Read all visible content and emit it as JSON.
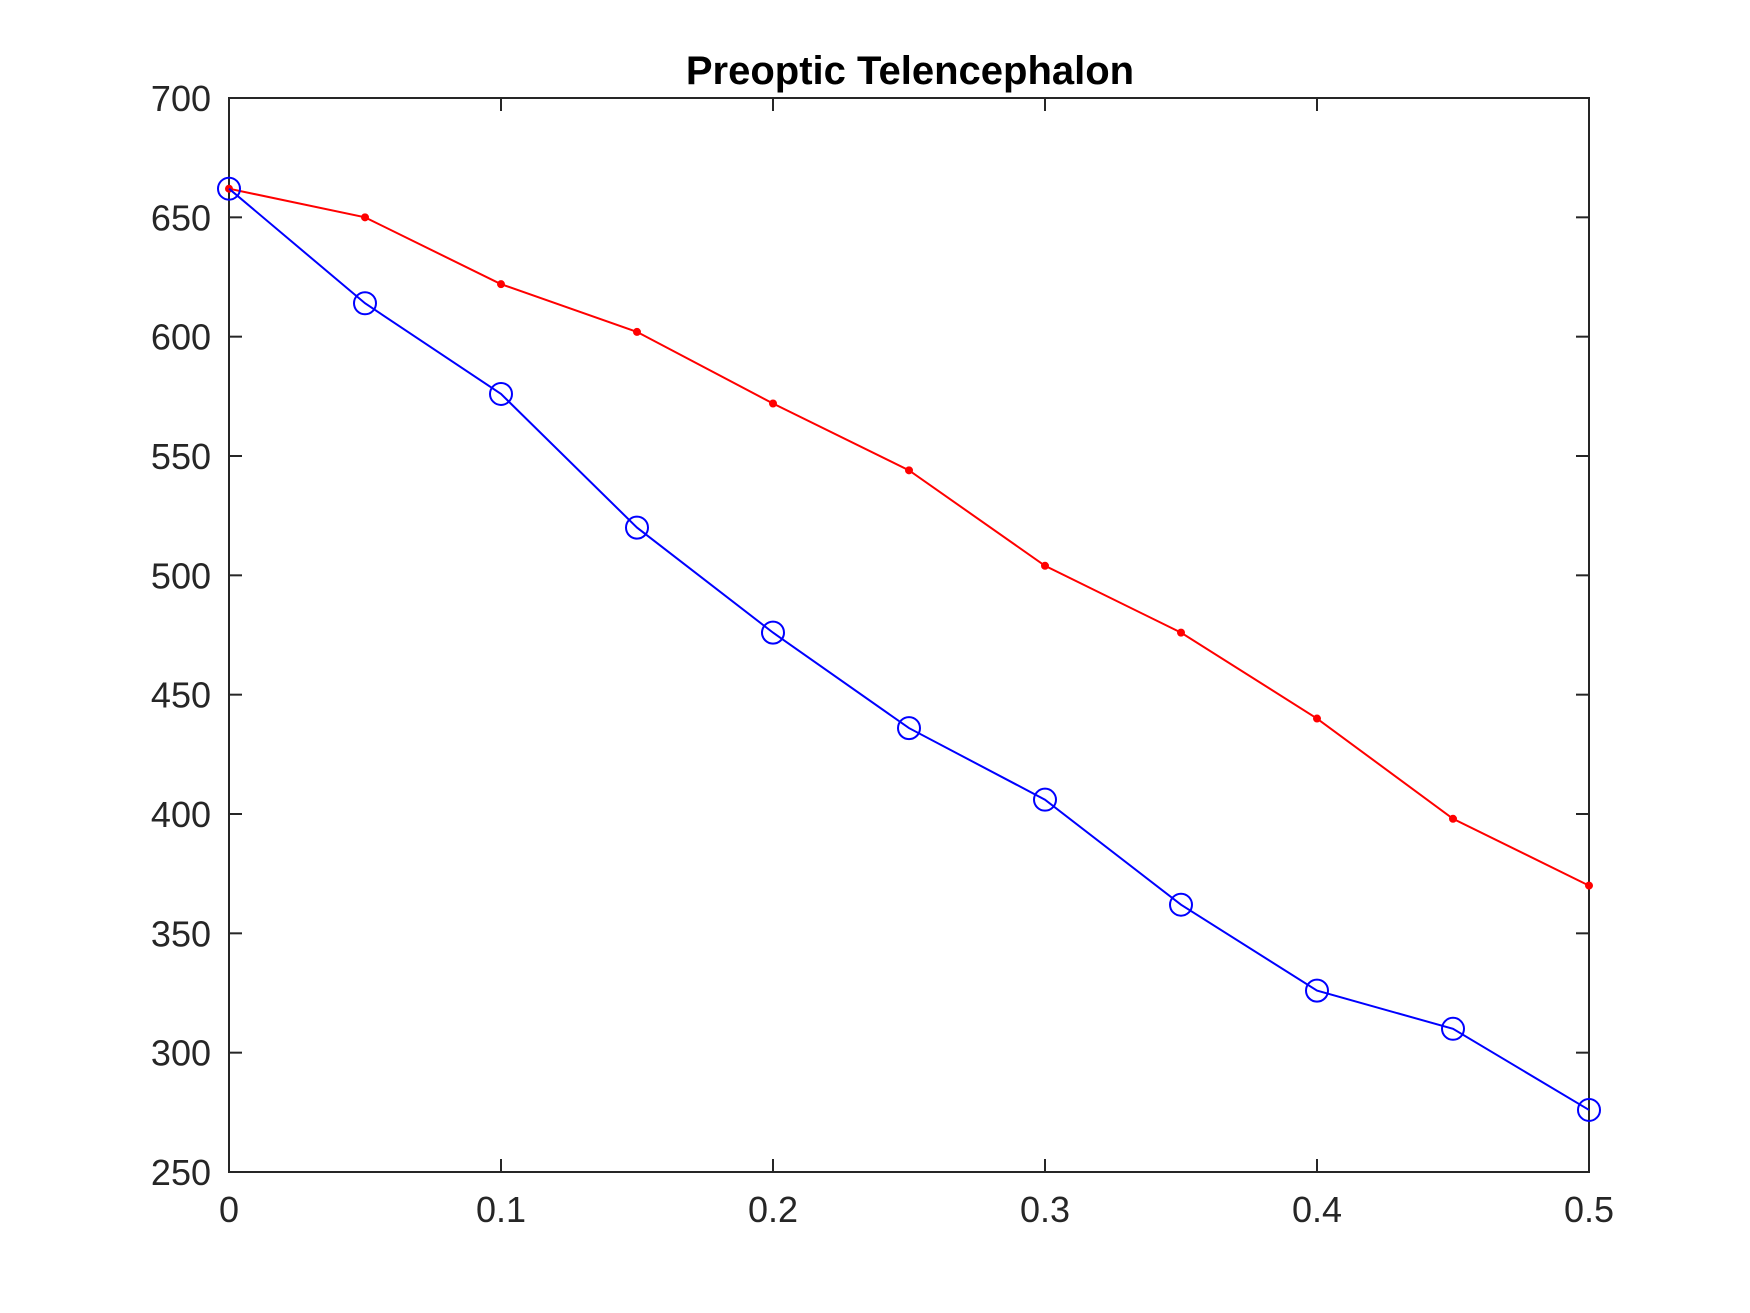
{
  "chart_data": {
    "type": "line",
    "title": "Preoptic Telencephalon",
    "xlabel": "",
    "ylabel": "",
    "xlim": [
      0,
      0.5
    ],
    "ylim": [
      250,
      700
    ],
    "x_ticks": [
      0,
      0.1,
      0.2,
      0.3,
      0.4,
      0.5
    ],
    "x_tick_labels": [
      "0",
      "0.1",
      "0.2",
      "0.3",
      "0.4",
      "0.5"
    ],
    "y_ticks": [
      250,
      300,
      350,
      400,
      450,
      500,
      550,
      600,
      650,
      700
    ],
    "y_tick_labels": [
      "250",
      "300",
      "350",
      "400",
      "450",
      "500",
      "550",
      "600",
      "650",
      "700"
    ],
    "grid": false,
    "legend": "none",
    "x": [
      0,
      0.05,
      0.1,
      0.15,
      0.2,
      0.25,
      0.3,
      0.35,
      0.4,
      0.45,
      0.5
    ],
    "series": [
      {
        "color": "#ff0000",
        "marker": "dot",
        "values": [
          662,
          650,
          622,
          602,
          572,
          544,
          504,
          476,
          440,
          398,
          370
        ]
      },
      {
        "color": "#0000ff",
        "marker": "circle",
        "values": [
          662,
          614,
          576,
          520,
          476,
          436,
          406,
          362,
          326,
          310,
          276
        ]
      }
    ]
  }
}
